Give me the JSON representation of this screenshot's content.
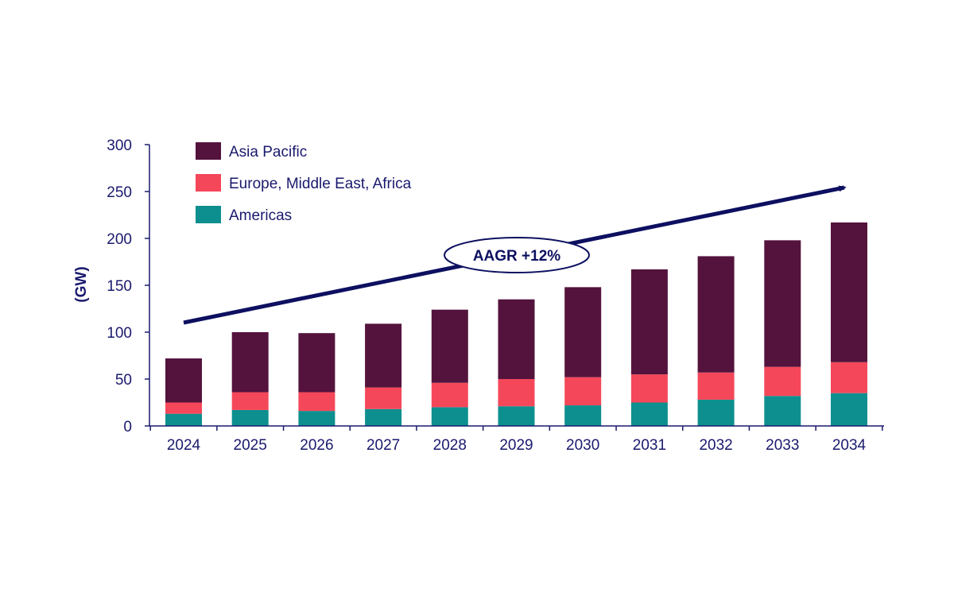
{
  "chart_data": {
    "type": "bar",
    "stacked": true,
    "categories": [
      "2024",
      "2025",
      "2026",
      "2027",
      "2028",
      "2029",
      "2030",
      "2031",
      "2032",
      "2033",
      "2034"
    ],
    "series": [
      {
        "name": "Americas",
        "color": "#0e8f8f",
        "values": [
          13,
          17,
          16,
          18,
          20,
          21,
          22,
          25,
          28,
          32,
          35
        ]
      },
      {
        "name": "Europe, Middle East, Africa",
        "color": "#f5475a",
        "values": [
          12,
          19,
          20,
          23,
          26,
          29,
          30,
          30,
          29,
          31,
          33
        ]
      },
      {
        "name": "Asia Pacific",
        "color": "#54133d",
        "values": [
          47,
          64,
          63,
          68,
          78,
          85,
          96,
          112,
          124,
          135,
          149
        ]
      }
    ],
    "ylabel": "(GW)",
    "ylim": [
      0,
      300
    ],
    "yticks": [
      0,
      50,
      100,
      150,
      200,
      250,
      300
    ],
    "grid": false,
    "legend_position": "top-left",
    "annotation": {
      "text": "AAGR +12%"
    },
    "colors": {
      "axis": "#1a1a6e",
      "text": "#1a1a6e",
      "arrow": "#0d1060"
    }
  }
}
